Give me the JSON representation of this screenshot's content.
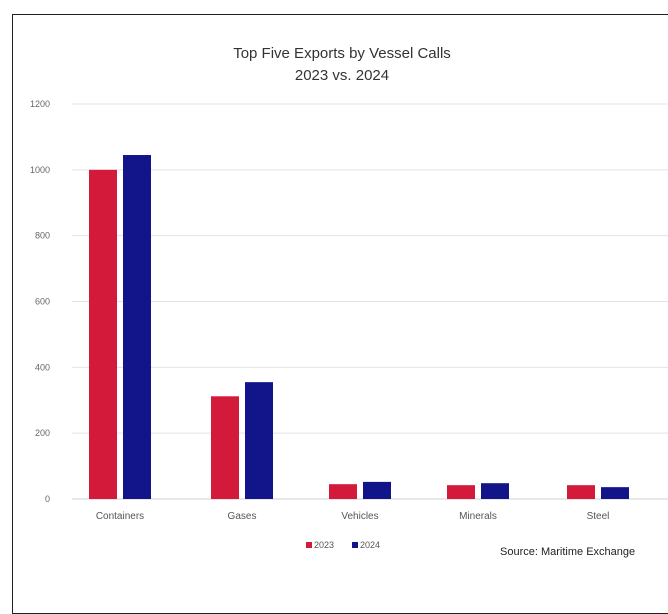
{
  "chart_data": {
    "type": "bar",
    "title": "Top Five Exports by Vessel Calls",
    "subtitle": "2023 vs. 2024",
    "categories": [
      "Containers",
      "Gases",
      "Vehicles",
      "Minerals",
      "Steel"
    ],
    "series": [
      {
        "name": "2023",
        "values": [
          1000,
          312,
          45,
          42,
          42
        ],
        "color": "#d31a3a"
      },
      {
        "name": "2024",
        "values": [
          1045,
          355,
          52,
          48,
          36
        ],
        "color": "#12148a"
      }
    ],
    "yticks": [
      "0",
      "200",
      "400",
      "600",
      "800",
      "1000",
      "1200"
    ],
    "ylim": [
      0,
      1200
    ],
    "grid": true,
    "legend_position": "bottom-center",
    "source": "Source: Maritime Exchange"
  }
}
